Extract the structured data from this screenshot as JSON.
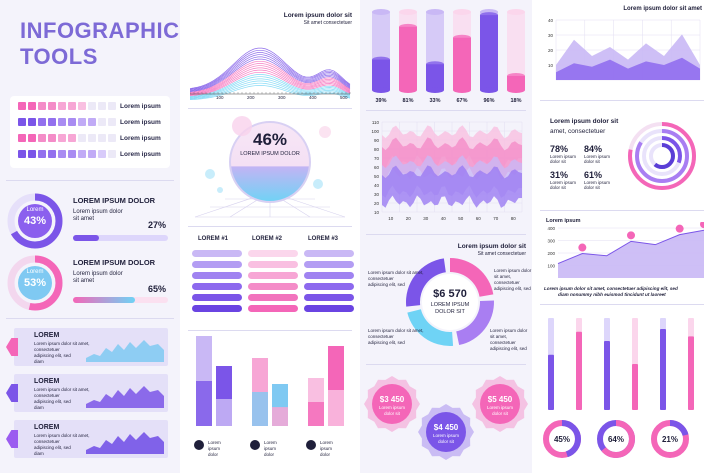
{
  "title": "INFOGRAPHIC TOOLS",
  "colors": {
    "purple": "#7b55e8",
    "violet": "#9b6cf0",
    "pink": "#f466b8",
    "lightpink": "#f9b4d8",
    "cyan": "#6fd3f5",
    "lavender": "#c9b8f5",
    "dark": "#1f1f3a"
  },
  "col1": {
    "row_labels": [
      "Lorem ipsum",
      "Lorem ipsum",
      "Lorem ipsum",
      "Lorem ipsum"
    ],
    "ring1": {
      "inner": "Lorem",
      "value": "43%",
      "title": "LOREM IPSUM DOLOR",
      "desc1": "Lorem ipsum dolor",
      "desc2": "sit amet",
      "percent_label": "27%",
      "fill": 0.27
    },
    "ring2": {
      "inner": "Lorem",
      "value": "53%",
      "title": "LOREM IPSUM DOLOR",
      "desc1": "Lorem ipsum dolor",
      "desc2": "sit amet",
      "percent_label": "65%",
      "fill": 0.65
    },
    "tabs": [
      {
        "title": "LOREM",
        "l1": "Lorem ipsum dolor sit amet,",
        "l2": "consectetuer",
        "l3": "adipiscing elit, sed",
        "l4": "diam"
      },
      {
        "title": "LOREM",
        "l1": "Lorem ipsum dolor sit amet,",
        "l2": "consectetuer",
        "l3": "adipiscing elit, sed",
        "l4": "diam"
      },
      {
        "title": "LOREM",
        "l1": "Lorem ipsum dolor sit amet,",
        "l2": "consectetuer",
        "l3": "adipiscing elit, sed",
        "l4": "diam"
      }
    ]
  },
  "col2": {
    "wave_title": "Lorem ipsum dolor sit",
    "wave_sub": "Sit amet consectetuer",
    "wave_ticks": [
      "100",
      "200",
      "300",
      "400",
      "500"
    ],
    "sphere_value": "46%",
    "sphere_label": "LOREM IPSUM DOLOR",
    "lorem_headers": [
      "LOREM #1",
      "LOREM #2",
      "LOREM #3"
    ],
    "bar_labels": [
      {
        "l1": "Lorem",
        "l2": "ipsum",
        "l3": "dolor"
      },
      {
        "l1": "Lorem",
        "l2": "ipsum",
        "l3": "dolor"
      },
      {
        "l1": "Lorem",
        "l2": "ipsum",
        "l3": "dolor"
      }
    ]
  },
  "col3": {
    "donut_title": "Lorem ipsum dolor sit",
    "donut_sub": "Sit amet consectetuer",
    "donut_value": "$6 570",
    "donut_l1": "LOREM IPSUM",
    "donut_l2": "DOLOR SIT",
    "left_note": {
      "l1": "Lorem ipsum dolor sit amet,",
      "l2": "consectetuer",
      "l3": "adipiscing elit, sed"
    },
    "left_note2": {
      "l1": "Lorem ipsum dolor sit amet,",
      "l2": "consectetuer",
      "l3": "adipiscing elit, sed"
    },
    "right_note": {
      "l1": "Lorem ipsum dolor sit amet,",
      "l2": "consectetuer",
      "l3": "adipiscing elit, sed"
    },
    "right_note2": {
      "l1": "Lorem ipsum dolor sit amet,",
      "l2": "consectetuer",
      "l3": "adipiscing elit, sed"
    },
    "badges": [
      {
        "value": "$3 450",
        "l1": "Lorem ipsum",
        "l2": "dolor sit"
      },
      {
        "value": "$5 450",
        "l1": "Lorem ipsum",
        "l2": "dolor sit"
      },
      {
        "value": "$4 450",
        "l1": "Lorem ipsum",
        "l2": "dolor sit"
      }
    ]
  },
  "col4": {
    "area_title": "Lorem ipsum dolor sit amet",
    "stats_title1": "Lorem ipsum dolor sit",
    "stats_title2": "amet, consectetuer",
    "stats": [
      {
        "value": "78%",
        "l1": "Lorem ipsum",
        "l2": "dolor sit"
      },
      {
        "value": "84%",
        "l1": "Lorem ipsum",
        "l2": "dolor sit"
      },
      {
        "value": "31%",
        "l1": "Lorem ipsum",
        "l2": "dolor sit"
      },
      {
        "value": "61%",
        "l1": "Lorem ipsum",
        "l2": "dolor sit"
      }
    ],
    "line_title": "Lorem ipsum",
    "line_note1": "Lorem ipsum dolor sit amet, consectetuer adipiscing elit, sed",
    "line_note2": "diam nonummy nibh euismod tincidunt ut laoreet",
    "donuts": [
      "45%",
      "64%",
      "21%"
    ]
  },
  "chart_data": [
    {
      "type": "bar",
      "title": "Cylinder bars",
      "categories": [
        "1",
        "2",
        "3",
        "4",
        "5",
        "6"
      ],
      "values": [
        39,
        81,
        33,
        67,
        96,
        18
      ],
      "value_labels": [
        "39%",
        "81%",
        "33%",
        "67%",
        "96%",
        "18%"
      ],
      "ylim": [
        0,
        100
      ]
    },
    {
      "type": "area",
      "title": "",
      "x": [
        10,
        20,
        30,
        40,
        50,
        60,
        70,
        80
      ],
      "series": [
        {
          "values": [
            88,
            80,
            92,
            84,
            95,
            82,
            90,
            86
          ]
        },
        {
          "values": [
            62,
            55,
            70,
            60,
            68,
            58,
            66,
            60
          ]
        },
        {
          "values": [
            40,
            34,
            48,
            36,
            44,
            30,
            42,
            38
          ]
        }
      ],
      "xticks": [
        "10",
        "20",
        "30",
        "40",
        "50",
        "60",
        "70",
        "80"
      ],
      "yticks": [
        "10",
        "20",
        "30",
        "40",
        "50",
        "60",
        "70",
        "80",
        "90",
        "100",
        "110"
      ],
      "ylim": [
        10,
        110
      ]
    },
    {
      "type": "line",
      "title": "Lorem ipsum",
      "yticks": [
        "100",
        "200",
        "300",
        "400"
      ],
      "ylim": [
        0,
        450
      ],
      "values": [
        130,
        220,
        200,
        330,
        300,
        390,
        430
      ]
    },
    {
      "type": "bar",
      "title": "Vertical progress",
      "categories": [
        "1",
        "2",
        "3",
        "4",
        "5",
        "6"
      ],
      "values": [
        60,
        85,
        75,
        50,
        88,
        80
      ],
      "ylim": [
        0,
        100
      ]
    },
    {
      "type": "area",
      "title": "Lorem ipsum dolor sit amet",
      "yticks": [
        "40",
        "30",
        "20",
        "10"
      ],
      "ylim": [
        0,
        40
      ]
    },
    {
      "type": "bar",
      "title": "Lorem bars",
      "categories": [
        "Lorem ipsum dolor",
        "Lorem ipsum dolor",
        "Lorem ipsum dolor"
      ],
      "values": [
        90,
        68,
        48
      ],
      "values2": [
        60,
        42,
        80
      ]
    }
  ]
}
